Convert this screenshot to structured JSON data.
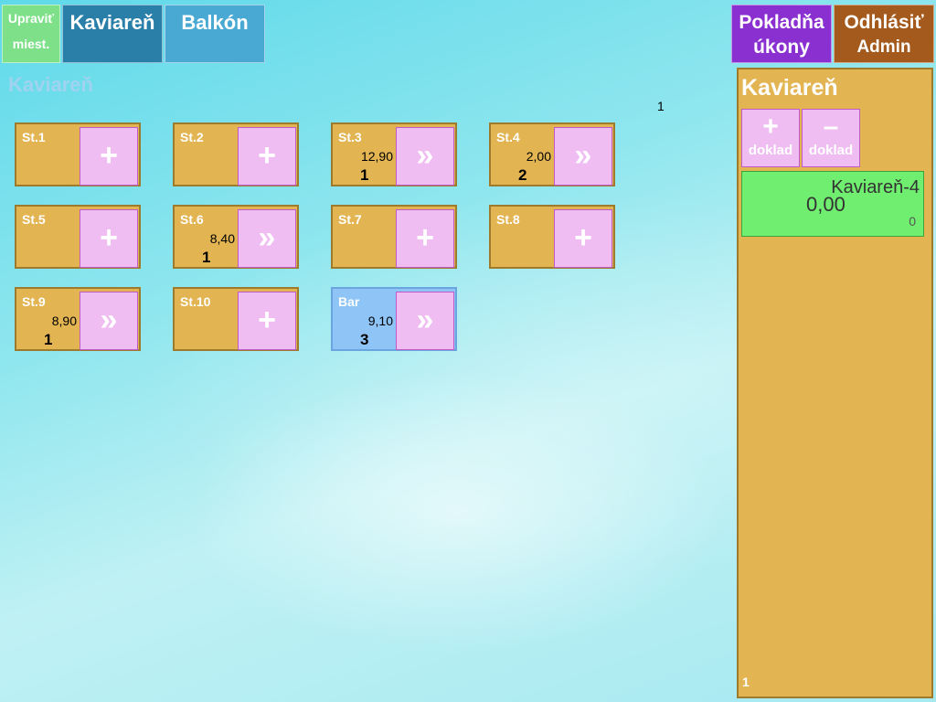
{
  "header": {
    "edit_label_1": "Upraviť",
    "edit_label_2": "miest.",
    "tabs": [
      {
        "label": "Kaviareň"
      },
      {
        "label": "Balkón"
      }
    ],
    "cash_label_1": "Pokladňa",
    "cash_label_2": "úkony",
    "logout_label": "Odhlásiť",
    "user": "Admin"
  },
  "main": {
    "section_title": "Kaviareň",
    "page_indicator": "1",
    "tables": [
      {
        "name": "St.1",
        "amount": "",
        "count": "",
        "action": "+"
      },
      {
        "name": "St.2",
        "amount": "",
        "count": "",
        "action": "+"
      },
      {
        "name": "St.3",
        "amount": "12,90",
        "count": "1",
        "action": "»"
      },
      {
        "name": "St.4",
        "amount": "2,00",
        "count": "2",
        "action": "»"
      },
      {
        "name": "St.5",
        "amount": "",
        "count": "",
        "action": "+"
      },
      {
        "name": "St.6",
        "amount": "8,40",
        "count": "1",
        "action": "»"
      },
      {
        "name": "St.7",
        "amount": "",
        "count": "",
        "action": "+"
      },
      {
        "name": "St.8",
        "amount": "",
        "count": "",
        "action": "+"
      },
      {
        "name": "St.9",
        "amount": "8,90",
        "count": "1",
        "action": "»"
      },
      {
        "name": "St.10",
        "amount": "",
        "count": "",
        "action": "+"
      },
      {
        "name": "Bar",
        "amount": "9,10",
        "count": "3",
        "action": "»"
      }
    ]
  },
  "panel": {
    "title": "Kaviareň",
    "add_symbol": "+",
    "add_label": "doklad",
    "remove_symbol": "–",
    "remove_label": "doklad",
    "receipt": {
      "name": "Kaviareň-4",
      "total": "0,00",
      "count": "0"
    },
    "footer": "1"
  },
  "colors": {
    "tile": "#e2b452",
    "tile_bar": "#8fc4f7",
    "action_button": "#efbdf1",
    "receipt": "#6fee6f"
  }
}
